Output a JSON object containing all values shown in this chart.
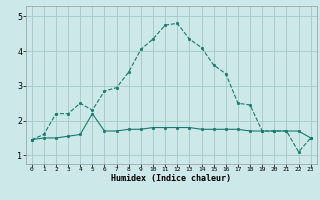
{
  "xlabel": "Humidex (Indice chaleur)",
  "background_color": "#cce8e8",
  "grid_color": "#aacccc",
  "line_color": "#1a7a6e",
  "xlim": [
    -0.5,
    23.5
  ],
  "ylim": [
    0.75,
    5.3
  ],
  "x_ticks": [
    0,
    1,
    2,
    3,
    4,
    5,
    6,
    7,
    8,
    9,
    10,
    11,
    12,
    13,
    14,
    15,
    16,
    17,
    18,
    19,
    20,
    21,
    22,
    23
  ],
  "y_ticks": [
    1,
    2,
    3,
    4,
    5
  ],
  "line1_x": [
    0,
    1,
    2,
    3,
    4,
    5,
    6,
    7,
    8,
    9,
    10,
    11,
    12,
    13,
    14,
    15,
    16,
    17,
    18,
    19,
    20,
    21,
    22,
    23
  ],
  "line1_y": [
    1.45,
    1.6,
    2.2,
    2.2,
    2.5,
    2.3,
    2.85,
    2.95,
    3.4,
    4.05,
    4.35,
    4.75,
    4.8,
    4.35,
    4.1,
    3.6,
    3.35,
    2.5,
    2.45,
    1.7,
    1.7,
    1.7,
    1.1,
    1.5
  ],
  "line2_x": [
    0,
    1,
    2,
    3,
    4,
    5,
    6,
    7,
    8,
    9,
    10,
    11,
    12,
    13,
    14,
    15,
    16,
    17,
    18,
    19,
    20,
    21,
    22,
    23
  ],
  "line2_y": [
    1.45,
    1.5,
    1.5,
    1.55,
    1.6,
    2.2,
    1.7,
    1.7,
    1.75,
    1.75,
    1.8,
    1.8,
    1.8,
    1.8,
    1.75,
    1.75,
    1.75,
    1.75,
    1.7,
    1.7,
    1.7,
    1.7,
    1.7,
    1.5
  ]
}
